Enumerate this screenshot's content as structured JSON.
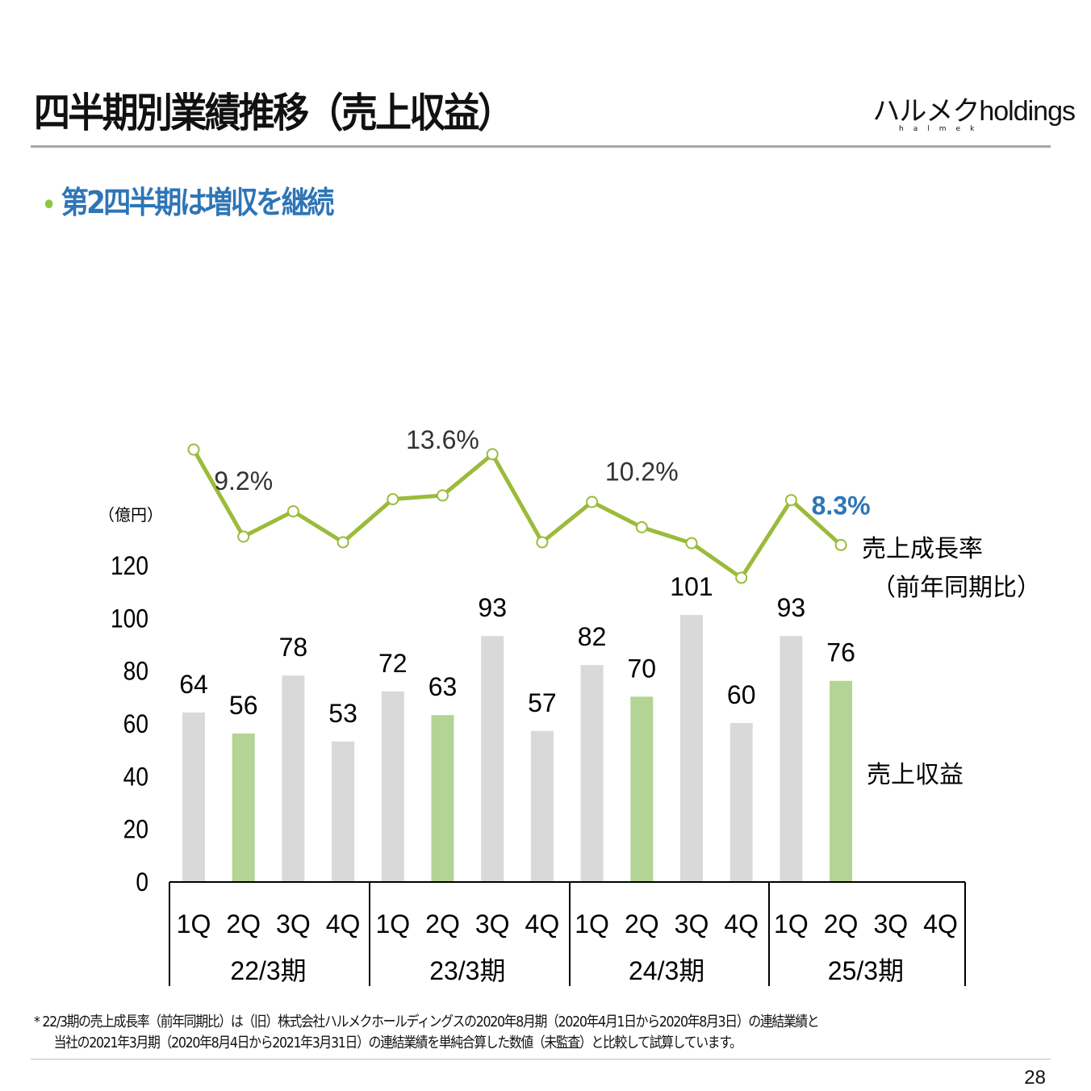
{
  "header": {
    "title": "四半期別業績推移（売上収益）",
    "logo_kana": "ハルメク",
    "logo_text": "holdings",
    "logo_sub": "halmek"
  },
  "subtitle": {
    "bullet": "•",
    "text": "第2四半期は増収を継続"
  },
  "chart_data": {
    "type": "bar+line",
    "unit_label": "（億円）",
    "y_ticks": [
      "0",
      "20",
      "40",
      "60",
      "80",
      "100",
      "120"
    ],
    "ylim": [
      0,
      120
    ],
    "groups": [
      {
        "label": "22/3期",
        "quarters": [
          "1Q",
          "2Q",
          "3Q",
          "4Q"
        ]
      },
      {
        "label": "23/3期",
        "quarters": [
          "1Q",
          "2Q",
          "3Q",
          "4Q"
        ]
      },
      {
        "label": "24/3期",
        "quarters": [
          "1Q",
          "2Q",
          "3Q",
          "4Q"
        ]
      },
      {
        "label": "25/3期",
        "quarters": [
          "1Q",
          "2Q",
          "3Q",
          "4Q"
        ]
      }
    ],
    "series": [
      {
        "name": "売上収益",
        "type": "bar",
        "values": [
          64,
          56,
          78,
          53,
          72,
          63,
          93,
          57,
          82,
          70,
          101,
          60,
          93,
          76,
          null,
          null
        ],
        "highlight_index_in_group": 1,
        "color": "#d9d9d9",
        "highlight_color": "#b3d494"
      },
      {
        "name": "売上成長率",
        "name2": "（前年同期比）",
        "type": "line",
        "unit": "%",
        "color": "#9bbb3b",
        "values": [
          18.5,
          9.2,
          11.9,
          8.6,
          13.2,
          13.6,
          18.0,
          8.6,
          12.9,
          10.2,
          8.5,
          4.8,
          13.1,
          8.3,
          null,
          null
        ],
        "labels": [
          {
            "index": 1,
            "text": "9.2%"
          },
          {
            "index": 5,
            "text": "13.6%"
          },
          {
            "index": 9,
            "text": "10.2%"
          },
          {
            "index": 13,
            "text": "8.3%",
            "emphasis": true
          }
        ]
      }
    ]
  },
  "footnote": {
    "line1": "*  22/3期の売上成長率（前年同期比）は（旧）株式会社ハルメクホールディングスの2020年8月期（2020年4月1日から2020年8月3日）の連結業績と",
    "line2": "当社の2021年3月期（2020年8月4日から2021年3月31日）の連結業績を単純合算した数値（未監査）と比較して試算しています。"
  },
  "page_number": "28"
}
